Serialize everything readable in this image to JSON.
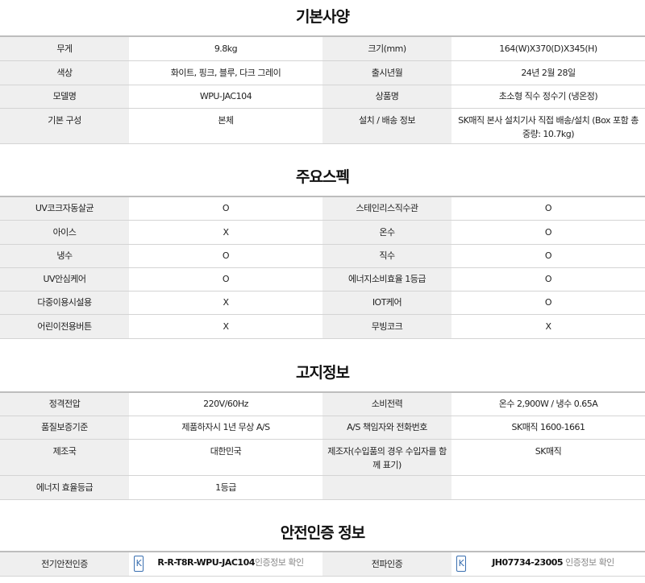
{
  "sections": [
    {
      "title": "기본사양",
      "rows": [
        [
          "무게",
          "9.8kg",
          "크기(mm)",
          "164(W)X370(D)X345(H)"
        ],
        [
          "색상",
          "화이트, 핑크, 블루, 다크 그레이",
          "출시년월",
          "24년 2월 28일"
        ],
        [
          "모델명",
          "WPU-JAC104",
          "상품명",
          "초소형 직수 정수기 (냉온정)"
        ],
        [
          "기본 구성",
          "본체",
          "설치 / 배송 정보",
          "SK매직 본사 설치기사 직접 배송/설치 (Box 포함 총중량: 10.7kg)"
        ]
      ]
    },
    {
      "title": "주요스펙",
      "rows": [
        [
          "UV코크자동살균",
          "O",
          "스테인리스직수관",
          "O"
        ],
        [
          "아이스",
          "X",
          "온수",
          "O"
        ],
        [
          "냉수",
          "O",
          "직수",
          "O"
        ],
        [
          "UV안심케어",
          "O",
          "에너지소비효율 1등급",
          "O"
        ],
        [
          "다중이용시설용",
          "X",
          "IOT케어",
          "O"
        ],
        [
          "어린이전용버튼",
          "X",
          "무빙코크",
          "X"
        ]
      ]
    },
    {
      "title": "고지정보",
      "rows": [
        [
          "정격전압",
          "220V/60Hz",
          "소비전력",
          "온수 2,900W / 냉수 0.65A"
        ],
        [
          "품질보증기준",
          "제품하자시 1년 무상 A/S",
          "A/S 책임자와 전화번호",
          "SK매직 1600-1661"
        ],
        [
          "제조국",
          "대한민국",
          "제조자(수입품의 경우 수입자를 함께 표기)",
          "SK매직"
        ],
        [
          "에너지 효율등급",
          "1등급",
          "",
          ""
        ]
      ]
    },
    {
      "title": "안전인증 정보",
      "cert": {
        "label1": "전기안전인증",
        "code1": "R-R-T8R-WPU-JAC104",
        "link1": "인증정보 확인",
        "label2": "전파인증",
        "code2": "JH07734-23005",
        "link2": " 인증정보 확인",
        "icon": "kc-mark-icon"
      }
    }
  ]
}
